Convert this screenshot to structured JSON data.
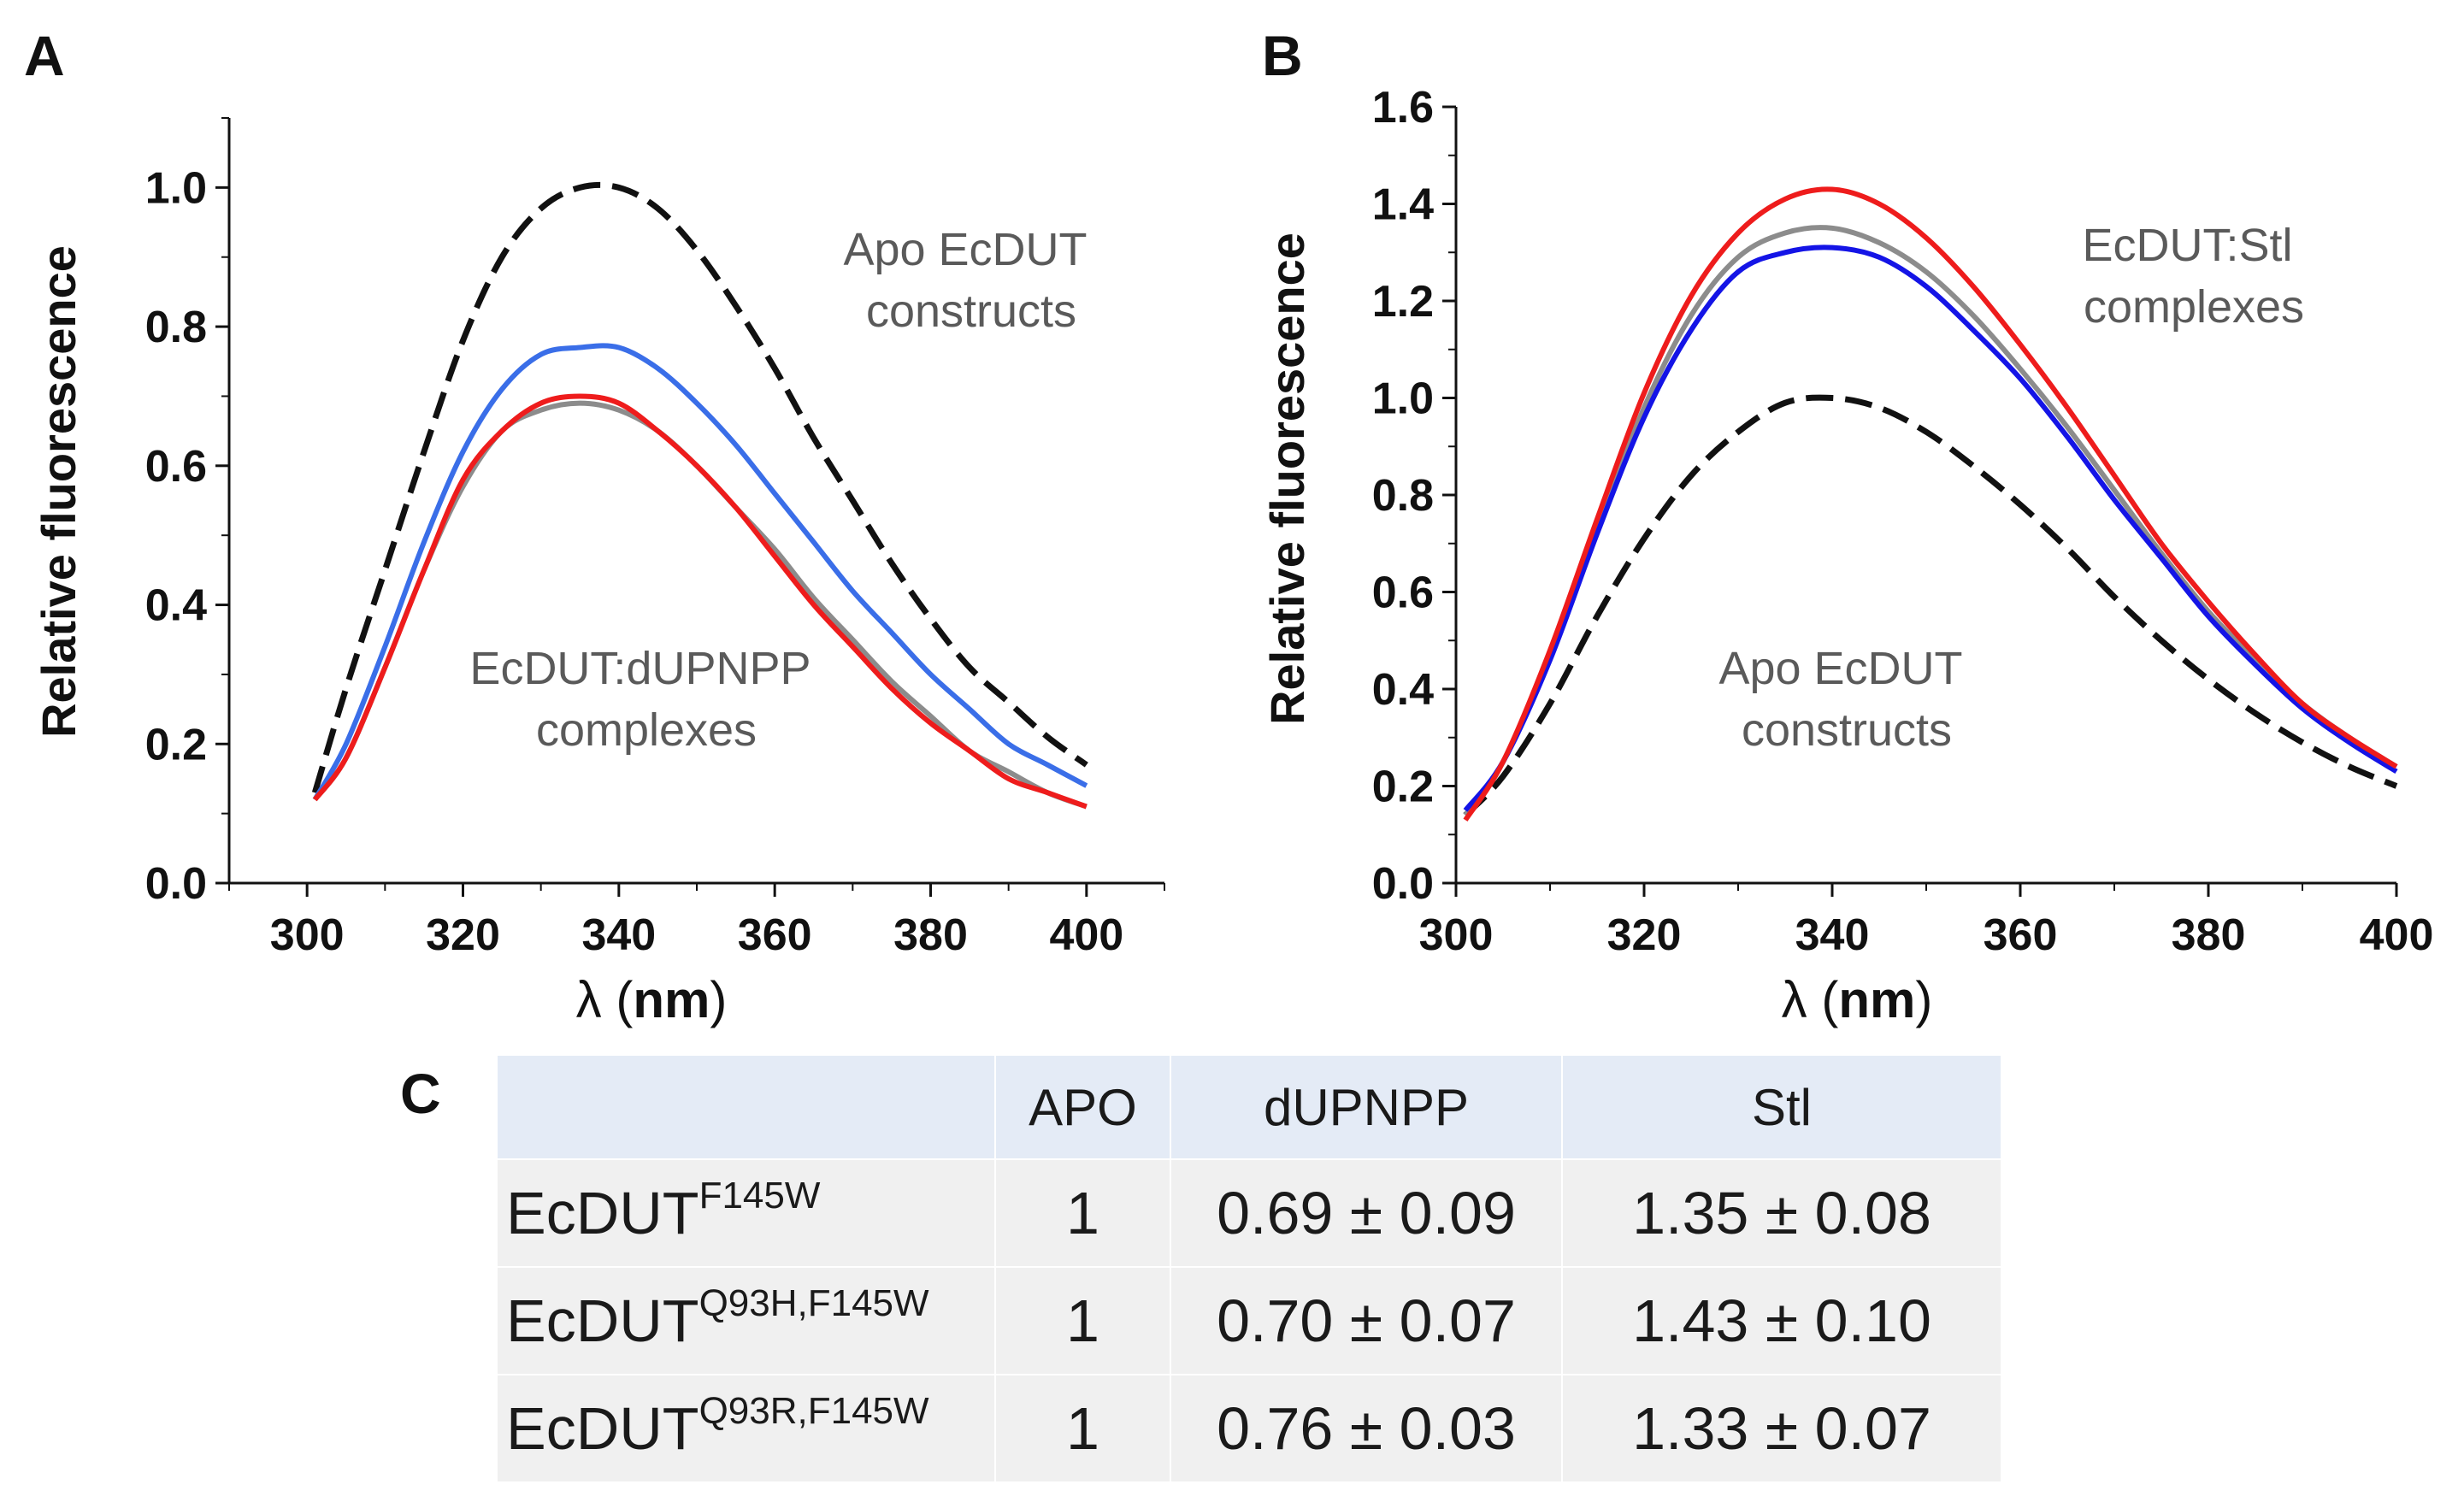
{
  "panels": {
    "a": "A",
    "b": "B",
    "c": "C"
  },
  "colors": {
    "apo": "#111111",
    "apo_dash_tail": "#8a8a8a",
    "gray": "#8c8c8c",
    "blue": "#3a6ee8",
    "blue_b": "#1414e6",
    "red": "#ee1c1c"
  },
  "chart_data": [
    {
      "id": "A",
      "type": "line",
      "title": "",
      "xlabel": "λ (nm)",
      "ylabel": "Relative fluorescence",
      "xlim": [
        290,
        410
      ],
      "ylim": [
        0.0,
        1.1
      ],
      "x_ticks": [
        "300",
        "320",
        "340",
        "360",
        "380",
        "400"
      ],
      "y_ticks": [
        "0.0",
        "0.2",
        "0.4",
        "0.6",
        "0.8",
        "1.0"
      ],
      "annotations": [
        {
          "lines": [
            "Apo EcDUT",
            "constructs"
          ]
        },
        {
          "lines": [
            "EcDUT:dUPNPP",
            "complexes"
          ]
        }
      ],
      "x": [
        301,
        305,
        310,
        315,
        320,
        325,
        330,
        335,
        340,
        345,
        350,
        355,
        360,
        365,
        370,
        375,
        380,
        385,
        390,
        395,
        400
      ],
      "series": [
        {
          "style": "dashed",
          "color": "#111111",
          "values": [
            0.13,
            0.28,
            0.45,
            0.62,
            0.78,
            0.9,
            0.97,
            1.0,
            1.0,
            0.97,
            0.91,
            0.83,
            0.74,
            0.64,
            0.55,
            0.46,
            0.38,
            0.31,
            0.26,
            0.21,
            0.17
          ]
        },
        {
          "style": "solid",
          "color": "#3a6ee8",
          "values": [
            0.12,
            0.2,
            0.34,
            0.49,
            0.62,
            0.71,
            0.76,
            0.77,
            0.77,
            0.74,
            0.69,
            0.63,
            0.56,
            0.49,
            0.42,
            0.36,
            0.3,
            0.25,
            0.2,
            0.17,
            0.14
          ]
        },
        {
          "style": "solid",
          "color": "#8c8c8c",
          "values": [
            0.12,
            0.18,
            0.31,
            0.45,
            0.57,
            0.65,
            0.68,
            0.69,
            0.68,
            0.65,
            0.6,
            0.54,
            0.48,
            0.41,
            0.35,
            0.29,
            0.24,
            0.19,
            0.16,
            0.13,
            0.11
          ]
        },
        {
          "style": "solid",
          "color": "#ee1c1c",
          "values": [
            0.12,
            0.18,
            0.31,
            0.45,
            0.58,
            0.65,
            0.69,
            0.7,
            0.69,
            0.65,
            0.6,
            0.54,
            0.47,
            0.4,
            0.34,
            0.28,
            0.23,
            0.19,
            0.15,
            0.13,
            0.11
          ]
        }
      ]
    },
    {
      "id": "B",
      "type": "line",
      "title": "",
      "xlabel": "λ (nm)",
      "ylabel": "Relative fluorescence",
      "xlim": [
        300,
        400
      ],
      "ylim": [
        0.0,
        1.6
      ],
      "x_ticks": [
        "300",
        "320",
        "340",
        "360",
        "380",
        "400"
      ],
      "y_ticks": [
        "0.0",
        "0.2",
        "0.4",
        "0.6",
        "0.8",
        "1.0",
        "1.2",
        "1.4",
        "1.6"
      ],
      "annotations": [
        {
          "lines": [
            "EcDUT:Stl",
            "complexes"
          ]
        },
        {
          "lines": [
            "Apo EcDUT",
            "constructs"
          ]
        }
      ],
      "x": [
        301,
        305,
        310,
        315,
        320,
        325,
        330,
        335,
        340,
        345,
        350,
        355,
        360,
        365,
        370,
        375,
        380,
        385,
        390,
        395,
        400
      ],
      "series": [
        {
          "style": "dashed",
          "color": "#111111",
          "values": [
            0.14,
            0.22,
            0.37,
            0.55,
            0.71,
            0.84,
            0.93,
            0.99,
            1.0,
            0.98,
            0.93,
            0.86,
            0.78,
            0.69,
            0.59,
            0.5,
            0.42,
            0.35,
            0.29,
            0.24,
            0.2
          ]
        },
        {
          "style": "solid",
          "color": "#8c8c8c",
          "values": [
            0.14,
            0.25,
            0.47,
            0.73,
            0.98,
            1.17,
            1.29,
            1.34,
            1.35,
            1.32,
            1.26,
            1.17,
            1.06,
            0.94,
            0.81,
            0.68,
            0.56,
            0.46,
            0.37,
            0.3,
            0.24
          ]
        },
        {
          "style": "solid",
          "color": "#1414e6",
          "values": [
            0.15,
            0.25,
            0.46,
            0.72,
            0.96,
            1.14,
            1.26,
            1.3,
            1.31,
            1.29,
            1.23,
            1.14,
            1.04,
            0.92,
            0.79,
            0.67,
            0.55,
            0.45,
            0.36,
            0.29,
            0.23
          ]
        },
        {
          "style": "solid",
          "color": "#ee1c1c",
          "values": [
            0.13,
            0.25,
            0.48,
            0.75,
            1.01,
            1.21,
            1.34,
            1.41,
            1.43,
            1.4,
            1.33,
            1.23,
            1.11,
            0.98,
            0.84,
            0.7,
            0.58,
            0.47,
            0.37,
            0.3,
            0.24
          ]
        }
      ]
    }
  ],
  "table": {
    "header": [
      "",
      "APO",
      "dUPNPP",
      "Stl"
    ],
    "rows": [
      {
        "base": "EcDUT",
        "sup": "F145W",
        "apo": "1",
        "dupnpp": "0.69 ± 0.09",
        "stl": "1.35 ± 0.08"
      },
      {
        "base": "EcDUT",
        "sup": "Q93H,F145W",
        "apo": "1",
        "dupnpp": "0.70 ± 0.07",
        "stl": "1.43 ± 0.10"
      },
      {
        "base": "EcDUT",
        "sup": "Q93R,F145W",
        "apo": "1",
        "dupnpp": "0.76 ± 0.03",
        "stl": "1.33 ± 0.07"
      }
    ]
  }
}
